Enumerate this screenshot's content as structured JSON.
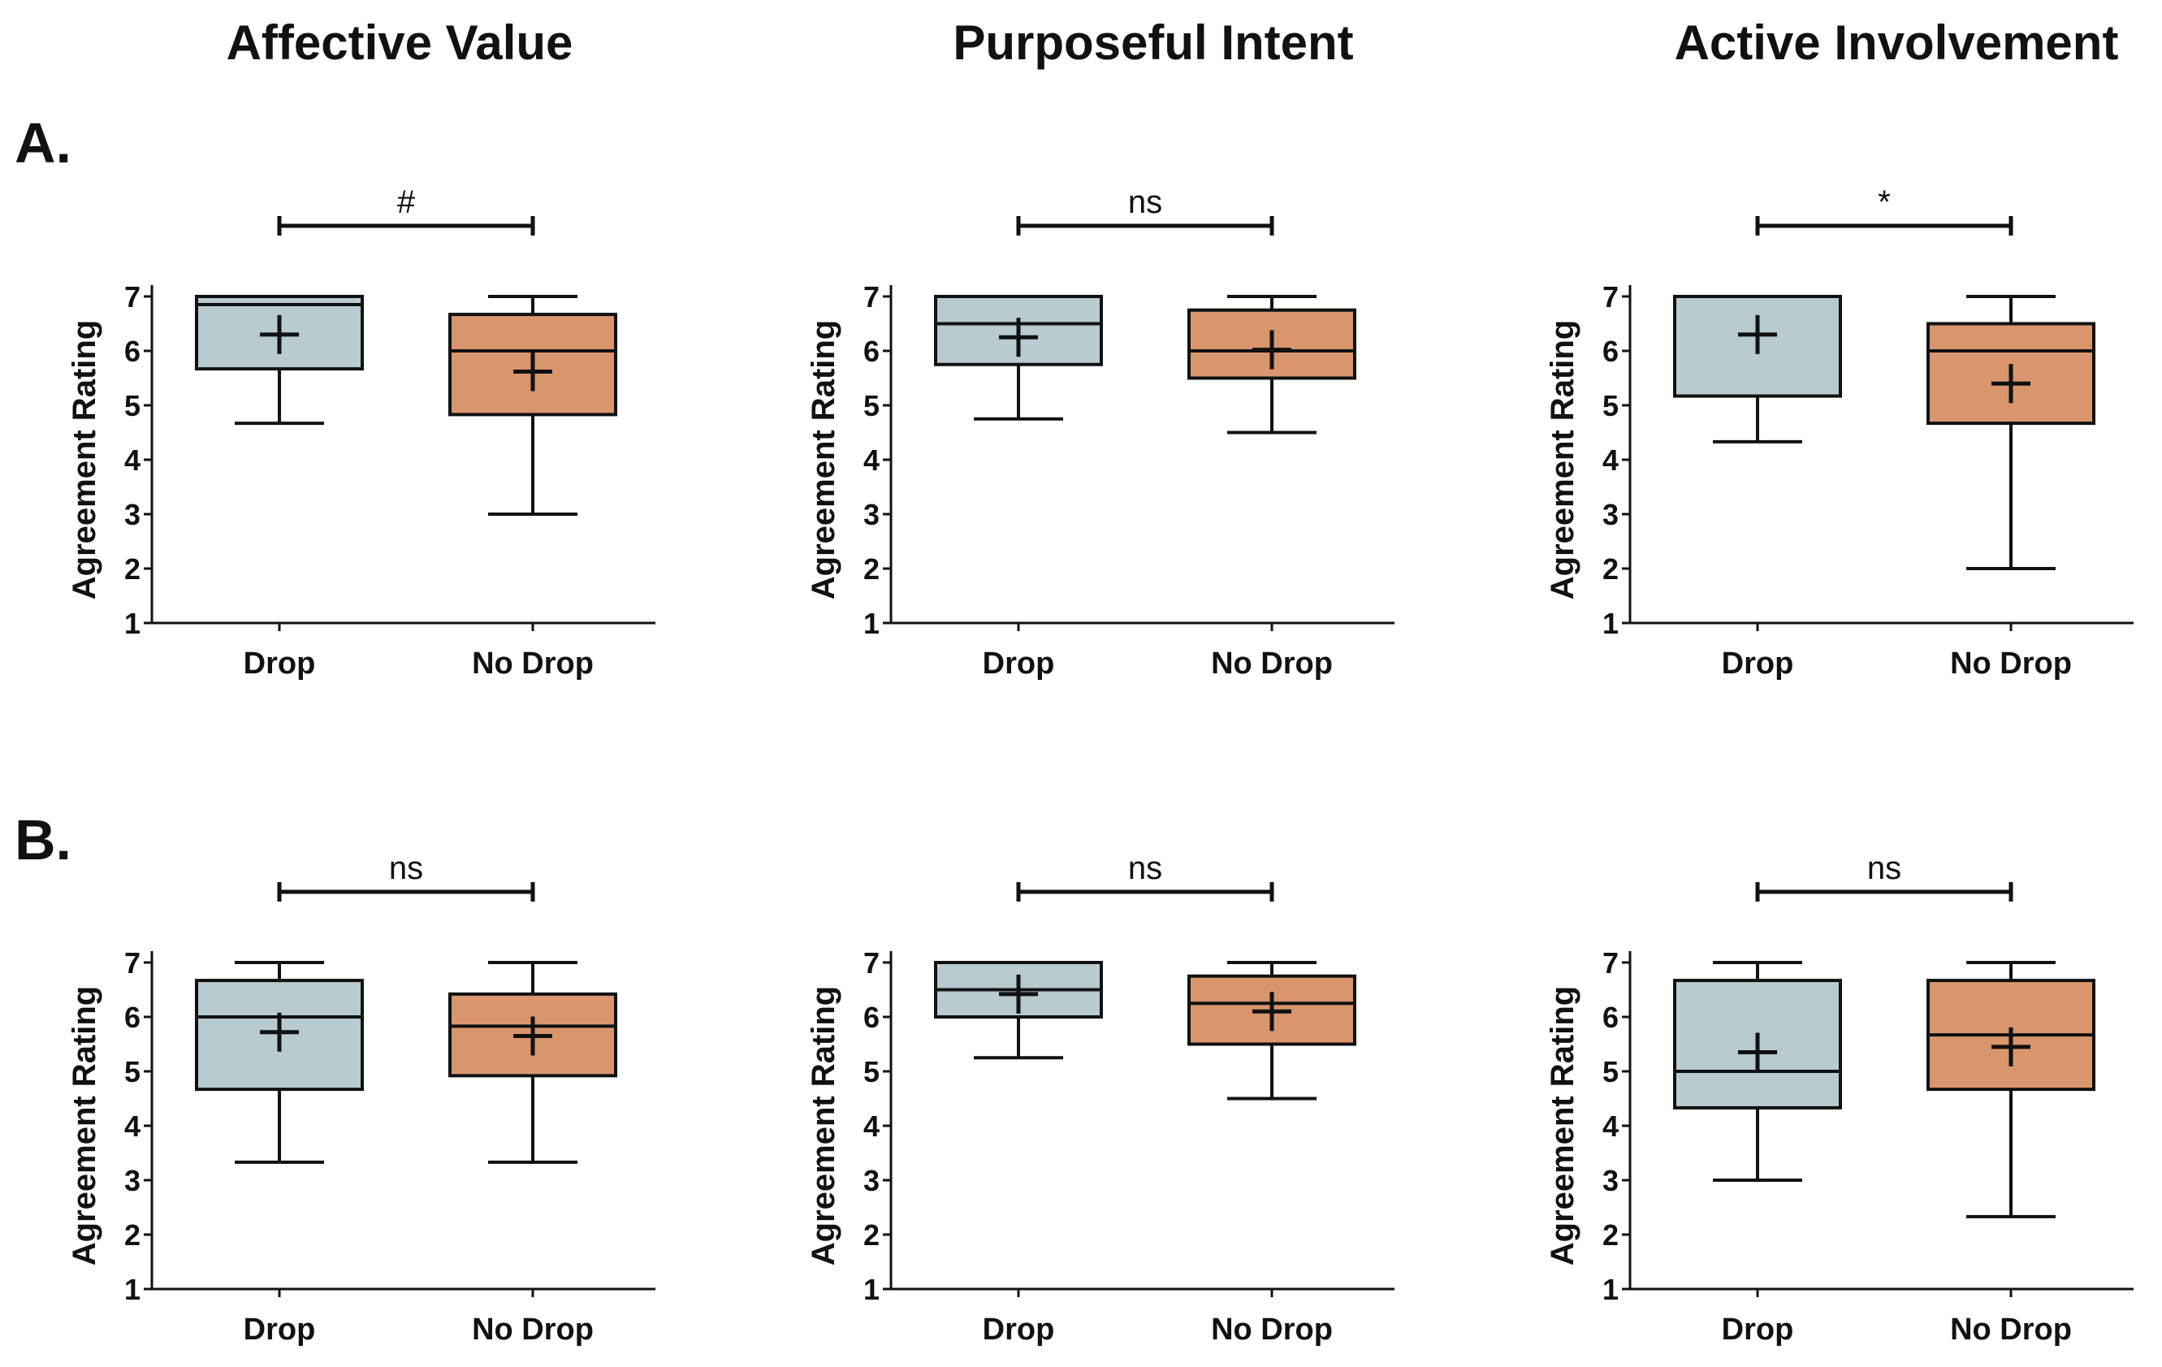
{
  "figure": {
    "column_titles": [
      "Affective Value",
      "Purposeful Intent",
      "Active Involvement"
    ],
    "row_labels": [
      "A.",
      "B."
    ],
    "colors": {
      "drop": "#b7cbd1",
      "no_drop": "#d9966d",
      "line": "#111111"
    }
  },
  "chart_data": [
    {
      "type": "box",
      "row": "A.",
      "column": "Affective Value",
      "ylabel": "Agreement Rating",
      "ylim": [
        1,
        7
      ],
      "yticks": [
        1,
        2,
        3,
        4,
        5,
        6,
        7
      ],
      "categories": [
        "Drop",
        "No Drop"
      ],
      "significance": "#",
      "boxes": [
        {
          "group": "Drop",
          "min": 4.67,
          "q1": 5.67,
          "median": 6.85,
          "q3": 7.0,
          "max": 7.0,
          "mean": 6.3
        },
        {
          "group": "No Drop",
          "min": 3.0,
          "q1": 4.83,
          "median": 6.0,
          "q3": 6.67,
          "max": 7.0,
          "mean": 5.62
        }
      ]
    },
    {
      "type": "box",
      "row": "A.",
      "column": "Purposeful Intent",
      "ylabel": "Agreement Rating",
      "ylim": [
        1,
        7
      ],
      "yticks": [
        1,
        2,
        3,
        4,
        5,
        6,
        7
      ],
      "categories": [
        "Drop",
        "No Drop"
      ],
      "significance": "ns",
      "boxes": [
        {
          "group": "Drop",
          "min": 4.75,
          "q1": 5.75,
          "median": 6.5,
          "q3": 7.0,
          "max": 7.0,
          "mean": 6.25
        },
        {
          "group": "No Drop",
          "min": 4.5,
          "q1": 5.5,
          "median": 6.0,
          "q3": 6.75,
          "max": 7.0,
          "mean": 6.02
        }
      ]
    },
    {
      "type": "box",
      "row": "A.",
      "column": "Active Involvement",
      "ylabel": "Agreement Rating",
      "ylim": [
        1,
        7
      ],
      "yticks": [
        1,
        2,
        3,
        4,
        5,
        6,
        7
      ],
      "categories": [
        "Drop",
        "No Drop"
      ],
      "significance": "*",
      "boxes": [
        {
          "group": "Drop",
          "min": 4.33,
          "q1": 5.17,
          "median": 7.0,
          "q3": 7.0,
          "max": 7.0,
          "mean": 6.3
        },
        {
          "group": "No Drop",
          "min": 2.0,
          "q1": 4.67,
          "median": 6.0,
          "q3": 6.5,
          "max": 7.0,
          "mean": 5.4
        }
      ]
    },
    {
      "type": "box",
      "row": "B.",
      "column": "Affective Value",
      "ylabel": "Agreement Rating",
      "ylim": [
        1,
        7
      ],
      "yticks": [
        1,
        2,
        3,
        4,
        5,
        6,
        7
      ],
      "categories": [
        "Drop",
        "No Drop"
      ],
      "significance": "ns",
      "boxes": [
        {
          "group": "Drop",
          "min": 3.33,
          "q1": 4.67,
          "median": 6.0,
          "q3": 6.67,
          "max": 7.0,
          "mean": 5.72
        },
        {
          "group": "No Drop",
          "min": 3.33,
          "q1": 4.92,
          "median": 5.83,
          "q3": 6.42,
          "max": 7.0,
          "mean": 5.65
        }
      ]
    },
    {
      "type": "box",
      "row": "B.",
      "column": "Purposeful Intent",
      "ylabel": "Agreement Rating",
      "ylim": [
        1,
        7
      ],
      "yticks": [
        1,
        2,
        3,
        4,
        5,
        6,
        7
      ],
      "categories": [
        "Drop",
        "No Drop"
      ],
      "significance": "ns",
      "boxes": [
        {
          "group": "Drop",
          "min": 5.25,
          "q1": 6.0,
          "median": 6.5,
          "q3": 7.0,
          "max": 7.0,
          "mean": 6.42
        },
        {
          "group": "No Drop",
          "min": 4.5,
          "q1": 5.5,
          "median": 6.25,
          "q3": 6.75,
          "max": 7.0,
          "mean": 6.1
        }
      ]
    },
    {
      "type": "box",
      "row": "B.",
      "column": "Active Involvement",
      "ylabel": "Agreement Rating",
      "ylim": [
        1,
        7
      ],
      "yticks": [
        1,
        2,
        3,
        4,
        5,
        6,
        7
      ],
      "categories": [
        "Drop",
        "No Drop"
      ],
      "significance": "ns",
      "boxes": [
        {
          "group": "Drop",
          "min": 3.0,
          "q1": 4.33,
          "median": 5.0,
          "q3": 6.67,
          "max": 7.0,
          "mean": 5.35
        },
        {
          "group": "No Drop",
          "min": 2.33,
          "q1": 4.67,
          "median": 5.67,
          "q3": 6.67,
          "max": 7.0,
          "mean": 5.45
        }
      ]
    }
  ]
}
